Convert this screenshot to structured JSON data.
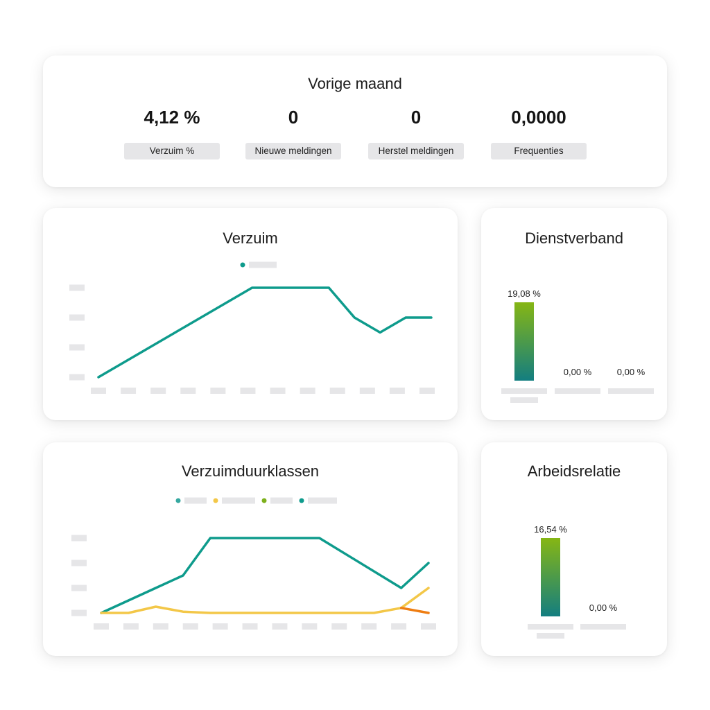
{
  "summary": {
    "title": "Vorige maand",
    "kpis": [
      {
        "value": "4,12 %",
        "label": "Verzuim %"
      },
      {
        "value": "0",
        "label": "Nieuwe meldingen"
      },
      {
        "value": "0",
        "label": "Herstel meldingen"
      },
      {
        "value": "0,0000",
        "label": "Frequenties"
      }
    ]
  },
  "colors": {
    "teal": "#0e9b8c",
    "yellow": "#f3c748",
    "green": "#7db01c",
    "orange": "#ee7d12",
    "placeholder": "#e6e6e8",
    "bar_top": "#86b614",
    "bar_bottom": "#137e80"
  },
  "chart_data": [
    {
      "type": "line",
      "title": "Verzuim",
      "legend": [
        {
          "color": "#0e9b8c"
        }
      ],
      "y_ticks": 4,
      "ylim": [
        0,
        3
      ],
      "x_count": 12,
      "series": [
        {
          "color": "#0e9b8c",
          "values": [
            0.0,
            0.5,
            1.0,
            1.5,
            2.0,
            2.5,
            3.0,
            3.0,
            3.0,
            3.0,
            2.0,
            1.5,
            2.0,
            2.0
          ]
        }
      ]
    },
    {
      "type": "bar",
      "title": "Dienstverband",
      "values": [
        19.08,
        0.0,
        0.0
      ],
      "labels": [
        "19,08 %",
        "0,00 %",
        "0,00 %"
      ]
    },
    {
      "type": "line",
      "title": "Verzuimduurklassen",
      "legend": [
        {
          "color": "#36a8a0"
        },
        {
          "color": "#f3c748"
        },
        {
          "color": "#7db01c"
        },
        {
          "color": "#0e9b8c"
        }
      ],
      "y_ticks": 4,
      "ylim": [
        0,
        3
      ],
      "x_count": 12,
      "series": [
        {
          "color": "#0e9b8c",
          "values": [
            0.0,
            1.0,
            1.5,
            3.0,
            3.0,
            3.0,
            3.0,
            3.0,
            1.0,
            2.0
          ]
        },
        {
          "color": "#f3c748",
          "values": [
            0.0,
            0.0,
            0.25,
            0.05,
            0.0,
            0.0,
            0.0,
            0.0,
            0.0,
            0.0,
            0.0,
            0.2,
            1.0
          ]
        },
        {
          "color": "#ee7d12",
          "values": [
            0.2,
            0.0
          ]
        }
      ]
    },
    {
      "type": "bar",
      "title": "Arbeidsrelatie",
      "values": [
        16.54,
        0.0
      ],
      "labels": [
        "16,54 %",
        "0,00 %"
      ]
    }
  ]
}
